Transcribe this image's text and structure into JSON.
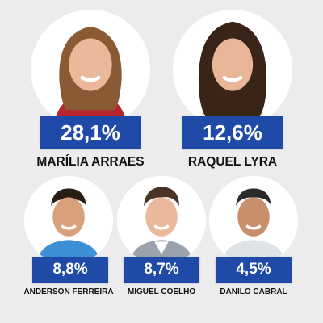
{
  "colors": {
    "background": "#ececee",
    "percent_box": "#1f4aa8",
    "percent_text": "#ffffff",
    "name_text": "#111111"
  },
  "candidates": [
    {
      "name": "MARÍLIA ARRAES",
      "percent": "28,1%",
      "value": 28.1,
      "icon": "portrait-photo"
    },
    {
      "name": "RAQUEL LYRA",
      "percent": "12,6%",
      "value": 12.6,
      "icon": "portrait-photo"
    },
    {
      "name": "ANDERSON FERREIRA",
      "percent": "8,8%",
      "value": 8.8,
      "icon": "portrait-photo"
    },
    {
      "name": "MIGUEL COELHO",
      "percent": "8,7%",
      "value": 8.7,
      "icon": "portrait-photo"
    },
    {
      "name": "DANILO CABRAL",
      "percent": "4,5%",
      "value": 4.5,
      "icon": "portrait-photo"
    }
  ]
}
